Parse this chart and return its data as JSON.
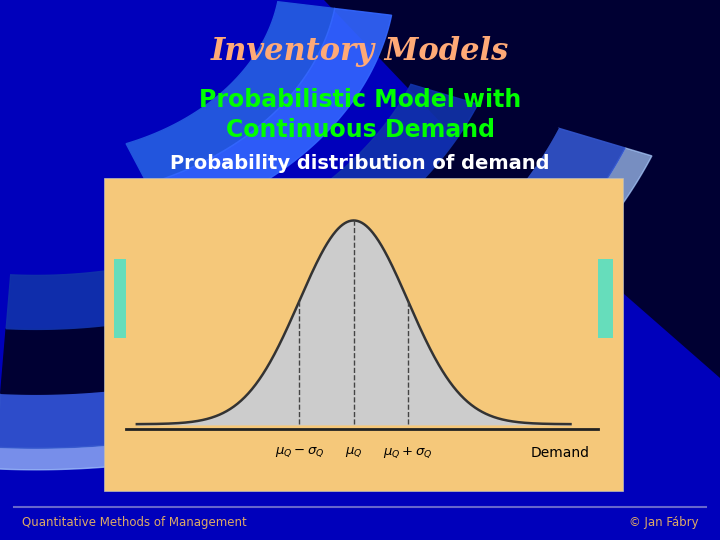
{
  "title": "Inventory Models",
  "subtitle_line1": "Probabilistic Model with",
  "subtitle_line2": "Continuous Demand",
  "section_title": "Probability distribution of demand",
  "title_color": "#FFAA77",
  "subtitle_color": "#00FF00",
  "section_title_color": "#FFFFFF",
  "bg_color": "#0000BB",
  "bg_dark": "#000033",
  "chart_bg_color": "#F5C87A",
  "curve_color": "#333333",
  "fill_color": "#CCCCCC",
  "dashed_color": "#444444",
  "box_color": "#66DDBB",
  "footer_color": "#DDAA66",
  "footer_line_color": "#6666CC",
  "footer_left": "Quantitative Methods of Management",
  "footer_right": "© Jan Fábry",
  "xlabel_demand": "Demand",
  "mu": 0.0,
  "sigma": 1.0,
  "xlim": [
    -4.2,
    4.5
  ],
  "ylim": [
    -0.01,
    0.45
  ],
  "arc_stripe1_color": "#3366EE",
  "arc_stripe2_color": "#AABBFF",
  "arc_dark_color": "#000044"
}
